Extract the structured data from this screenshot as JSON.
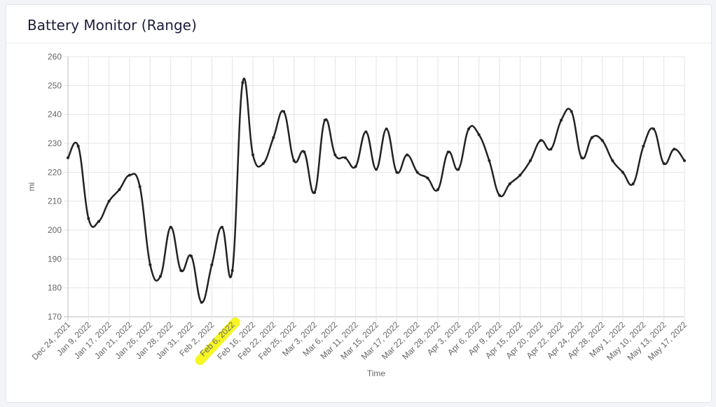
{
  "chart_data": {
    "type": "line",
    "title": "Battery Monitor (Range)",
    "x_label": "Time",
    "y_label": "mi",
    "categories": [
      "Dec 24, 2021",
      null,
      "Jan 9, 2022",
      null,
      "Jan 17, 2022",
      null,
      "Jan 21, 2022",
      null,
      "Jan 26, 2022",
      null,
      "Jan 28, 2022",
      null,
      "Jan 31, 2022",
      null,
      "Feb 2, 2022",
      null,
      "Feb 6, 2022",
      null,
      "Feb 16, 2022",
      null,
      "Feb 22, 2022",
      null,
      "Feb 25, 2022",
      null,
      "Mar 3, 2022",
      null,
      "Mar 6, 2022",
      null,
      "Mar 11, 2022",
      null,
      "Mar 15, 2022",
      null,
      "Mar 17, 2022",
      null,
      "Mar 22, 2022",
      null,
      "Mar 28, 2022",
      null,
      "Apr 3, 2022",
      null,
      "Apr 6, 2022",
      null,
      "Apr 9, 2022",
      null,
      "Apr 15, 2022",
      null,
      "Apr 20, 2022",
      null,
      "Apr 22, 2022",
      null,
      "Apr 24, 2022",
      null,
      "Apr 28, 2022",
      null,
      "May 1, 2022",
      null,
      "May 10, 2022",
      null,
      "May 13, 2022",
      null,
      "May 17, 2022"
    ],
    "series": [
      {
        "name": "Range",
        "color": "#222222",
        "values": [
          225,
          229,
          204,
          203,
          210,
          214,
          219,
          215,
          188,
          184,
          201,
          186,
          191,
          175,
          188,
          201,
          186,
          251,
          226,
          223,
          232,
          241,
          224,
          227,
          213,
          238,
          226,
          225,
          222,
          234,
          221,
          235,
          220,
          226,
          220,
          218,
          214,
          227,
          221,
          235,
          233,
          224,
          212,
          216,
          219,
          224,
          231,
          228,
          238,
          241,
          225,
          232,
          231,
          224,
          220,
          216,
          229,
          235,
          223,
          228,
          224
        ]
      }
    ],
    "ylim": [
      170,
      260
    ],
    "yticks": [
      170,
      180,
      190,
      200,
      210,
      220,
      230,
      240,
      250,
      260
    ],
    "grid": true
  }
}
